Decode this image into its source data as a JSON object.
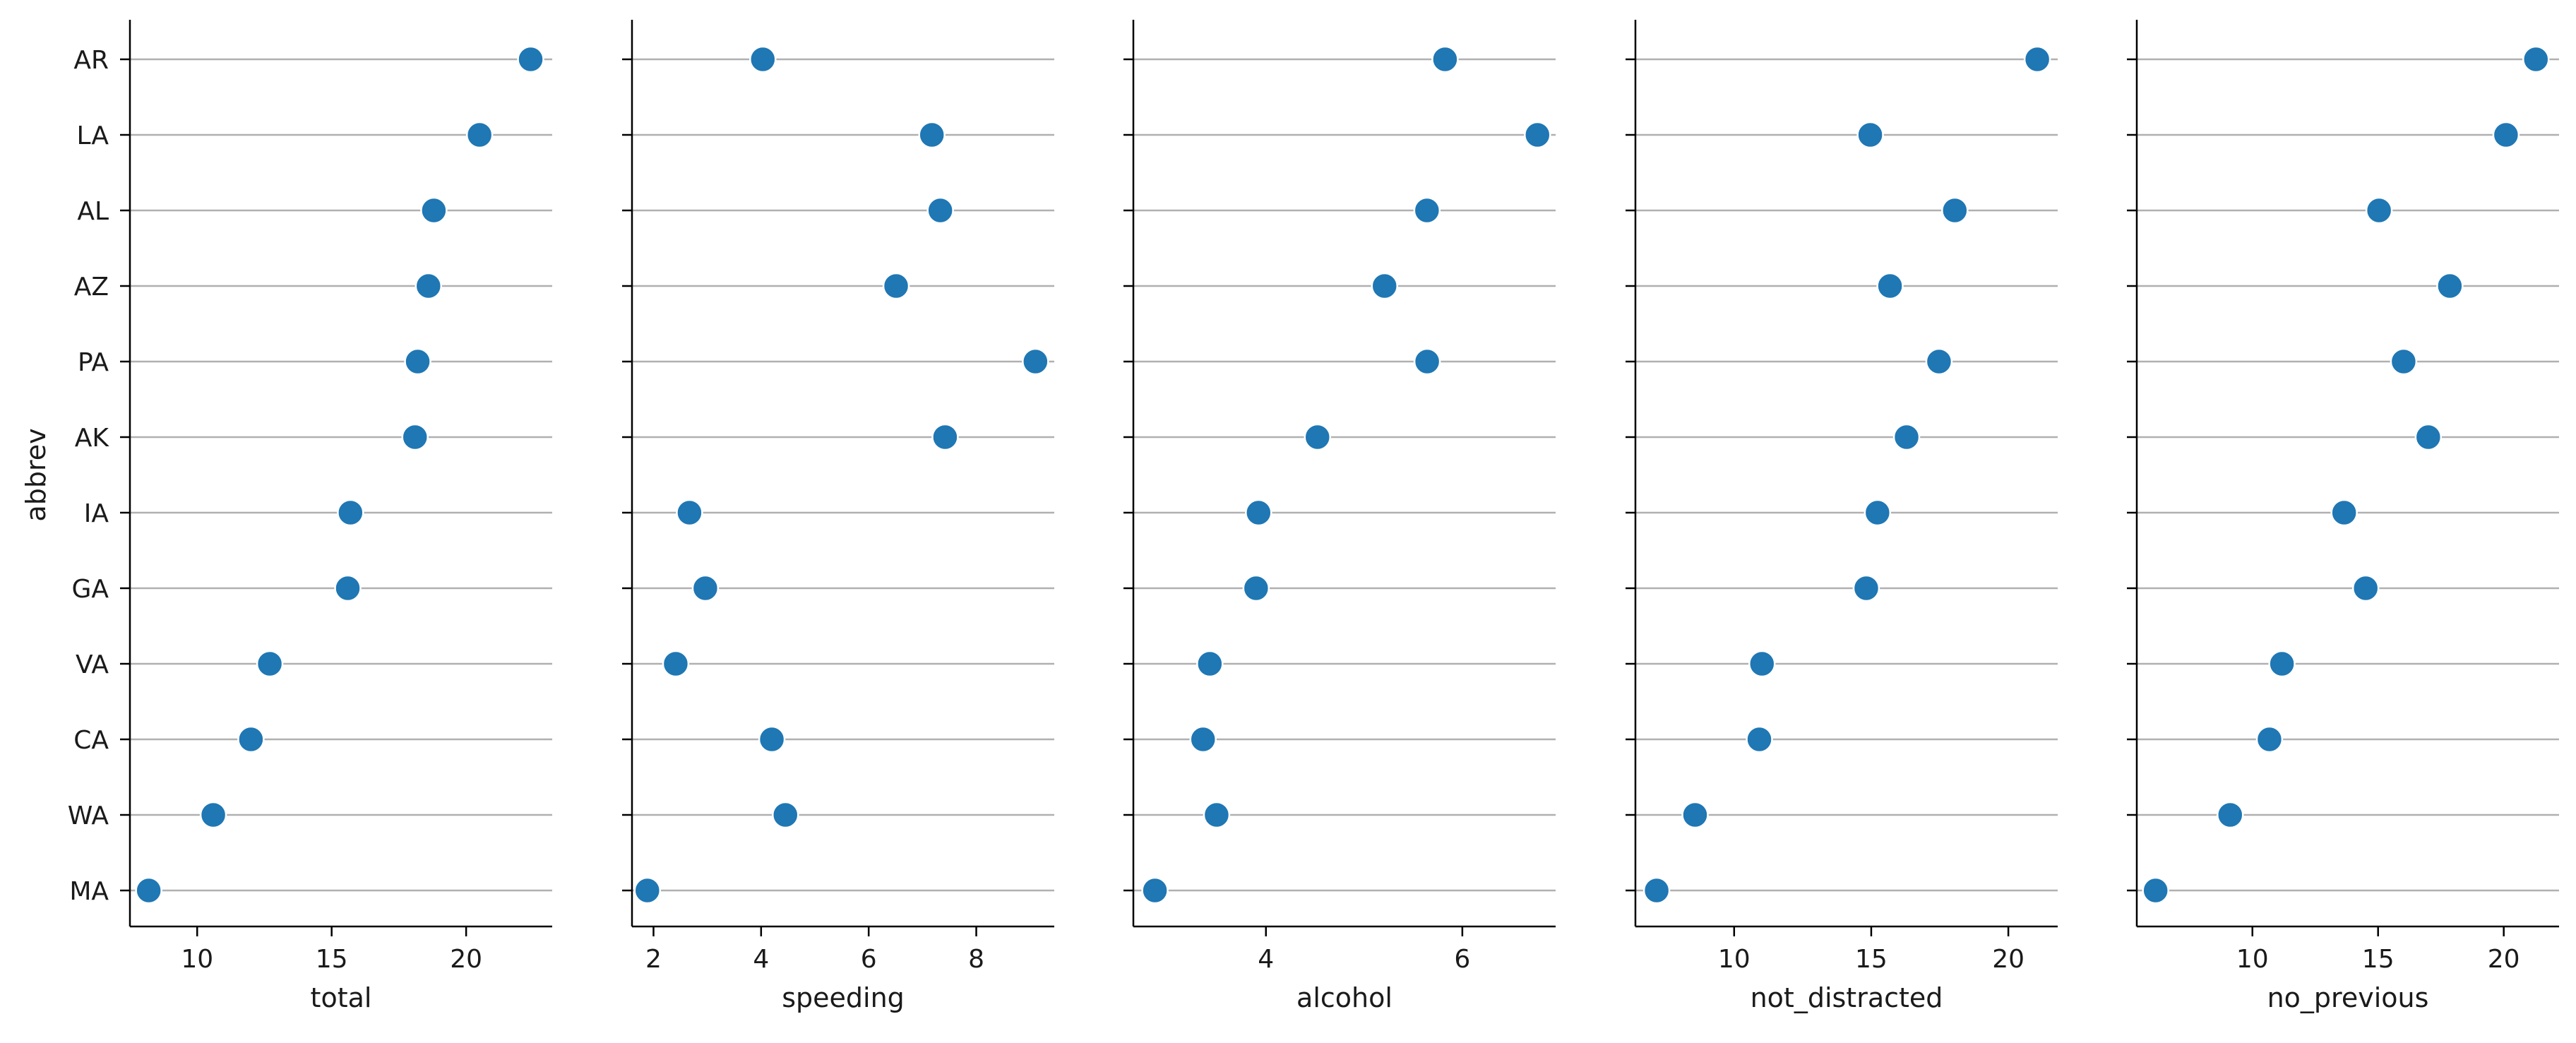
{
  "chart_data": {
    "type": "scatter",
    "layout": "small-multiples-dot-plot",
    "categories": [
      "AR",
      "LA",
      "AL",
      "AZ",
      "PA",
      "AK",
      "IA",
      "GA",
      "VA",
      "CA",
      "WA",
      "MA"
    ],
    "ylabel": "abbrev",
    "grid": "horizontal",
    "marker_color": "#1f77b4",
    "panels": [
      {
        "xlabel": "total",
        "xlim": [
          7.5,
          23.2
        ],
        "xticks": [
          10,
          15,
          20
        ],
        "values": [
          22.4,
          20.5,
          18.8,
          18.6,
          18.2,
          18.1,
          15.7,
          15.6,
          12.7,
          12.0,
          10.6,
          8.2
        ]
      },
      {
        "xlabel": "speeding",
        "xlim": [
          1.6,
          9.45
        ],
        "xticks": [
          2,
          4,
          6,
          8
        ],
        "values": [
          4.032,
          7.175,
          7.332,
          6.51,
          9.1,
          7.421,
          2.669,
          2.964,
          2.413,
          4.2,
          4.452,
          1.886
        ]
      },
      {
        "xlabel": "alcohol",
        "xlim": [
          2.65,
          6.95
        ],
        "xticks": [
          4,
          6
        ],
        "values": [
          5.824,
          6.765,
          5.64,
          5.208,
          5.642,
          4.525,
          3.925,
          3.9,
          3.429,
          3.36,
          3.498,
          2.87
        ]
      },
      {
        "xlabel": "not_distracted",
        "xlim": [
          6.4,
          21.8
        ],
        "xticks": [
          10,
          15,
          20
        ],
        "values": [
          21.056,
          14.965,
          18.048,
          15.686,
          17.472,
          16.29,
          15.229,
          14.82,
          11.016,
          10.92,
          8.576,
          7.175
        ]
      },
      {
        "xlabel": "no_previous",
        "xlim": [
          5.4,
          22.2
        ],
        "xticks": [
          10,
          15,
          20
        ],
        "values": [
          21.28,
          20.09,
          15.04,
          17.856,
          16.016,
          16.998,
          13.65,
          14.508,
          11.176,
          10.68,
          9.116,
          6.15
        ]
      }
    ]
  }
}
